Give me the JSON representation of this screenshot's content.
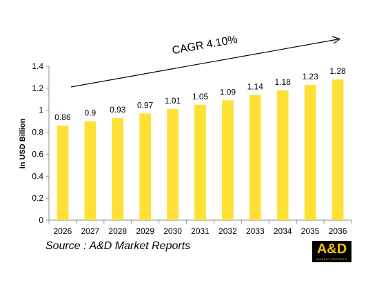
{
  "chart_data": {
    "type": "bar",
    "categories": [
      "2026",
      "2027",
      "2028",
      "2029",
      "2030",
      "2031",
      "2032",
      "2033",
      "2034",
      "2035",
      "2036"
    ],
    "values": [
      0.86,
      0.9,
      0.93,
      0.97,
      1.01,
      1.05,
      1.09,
      1.14,
      1.18,
      1.23,
      1.28
    ],
    "value_labels": [
      "0.86",
      "0.9",
      "0.93",
      "0.97",
      "1.01",
      "1.05",
      "1.09",
      "1.14",
      "1.18",
      "1.23",
      "1.28"
    ],
    "ylabel": "In USD Billion",
    "ylim": [
      0,
      1.4
    ],
    "yticks": [
      "0",
      "0.2",
      "0.4",
      "0.6",
      "0.8",
      "1",
      "1.2",
      "1.4"
    ],
    "grid": false,
    "bar_color": "#ffe135",
    "annotation": "CAGR 4.10%"
  },
  "source": "Source : A&D Market Reports",
  "logo": {
    "main": "A&D",
    "sub": "MARKET REPORTS",
    "color": "#f5c400"
  }
}
